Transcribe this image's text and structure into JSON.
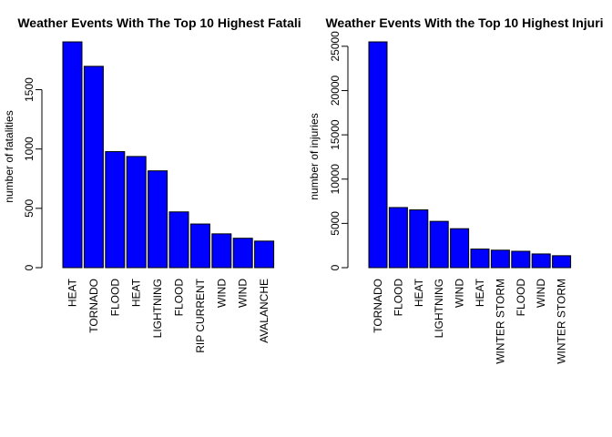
{
  "chart_data": [
    {
      "type": "bar",
      "title": "Weather Events With The Top 10 Highest Fatali",
      "xlabel": "",
      "ylabel": "number of fatalities",
      "categories": [
        "HEAT",
        "TORNADO",
        "FLOOD",
        "HEAT",
        "LIGHTNING",
        "FLOOD",
        "RIP CURRENT",
        "WIND",
        "WIND",
        "AVALANCHE"
      ],
      "values": [
        1903,
        1697,
        978,
        937,
        816,
        470,
        368,
        285,
        248,
        224
      ],
      "ylim": [
        0,
        1903
      ],
      "yticks": [
        "0",
        "500",
        "1000",
        "1500"
      ],
      "grid": false,
      "bar_color": "#0000FF",
      "bar_border": "#000000"
    },
    {
      "type": "bar",
      "title": "Weather Events With the Top 10 Highest Injuri",
      "xlabel": "",
      "ylabel": "number of injuries",
      "categories": [
        "TORNADO",
        "FLOOD",
        "HEAT",
        "LIGHTNING",
        "WIND",
        "HEAT",
        "WINTER STORM",
        "FLOOD",
        "WIND",
        "WINTER STORM"
      ],
      "values": [
        25497,
        6789,
        6525,
        5230,
        4400,
        2100,
        1975,
        1850,
        1550,
        1350
      ],
      "ylim": [
        0,
        25497
      ],
      "yticks": [
        "0",
        "5000",
        "10000",
        "15000",
        "20000",
        "25000"
      ],
      "grid": false,
      "bar_color": "#0000FF",
      "bar_border": "#000000"
    }
  ]
}
